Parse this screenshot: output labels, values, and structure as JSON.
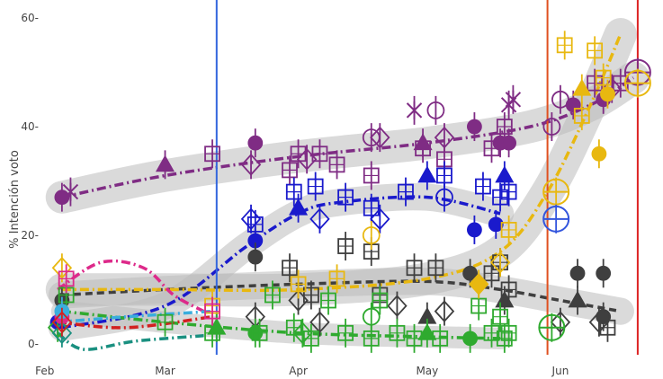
{
  "chart_data": {
    "type": "scatter",
    "title": "",
    "xlabel": "",
    "ylabel": "% Intención voto",
    "xaxis": {
      "type": "date",
      "range": [
        "2019-01-31",
        "2019-06-23"
      ],
      "ticks": [
        {
          "date": "2019-02-01",
          "label": "Feb"
        },
        {
          "date": "2019-03-01",
          "label": "Mar"
        },
        {
          "date": "2019-04-01",
          "label": "Apr"
        },
        {
          "date": "2019-05-01",
          "label": "May"
        },
        {
          "date": "2019-06-01",
          "label": "Jun"
        }
      ]
    },
    "yaxis": {
      "range": [
        -2,
        62
      ],
      "ticks": [
        {
          "value": 0,
          "label": "0-"
        },
        {
          "value": 20,
          "label": "20-"
        },
        {
          "value": 40,
          "label": "40-"
        },
        {
          "value": 60,
          "label": "60-"
        }
      ]
    },
    "grid": false,
    "legend": "none",
    "vlines": [
      {
        "date": "2019-03-13",
        "color": "#3366dd"
      },
      {
        "date": "2019-05-29",
        "color": "#e05020"
      },
      {
        "date": "2019-06-19",
        "color": "#dd2222"
      }
    ],
    "series": [
      {
        "color": "#7f2c84",
        "dash": "10,4,2,4",
        "trend": [
          [
            "2019-02-05",
            27
          ],
          [
            "2019-03-01",
            31
          ],
          [
            "2019-04-01",
            34.5
          ],
          [
            "2019-05-01",
            37
          ],
          [
            "2019-05-25",
            40
          ],
          [
            "2019-06-08",
            44
          ],
          [
            "2019-06-18",
            49
          ]
        ],
        "band": 3,
        "points": [
          [
            "2019-02-05",
            27,
            "circle",
            1
          ],
          [
            "2019-02-07",
            28,
            "asterisk",
            0
          ],
          [
            "2019-03-01",
            33,
            "triangle",
            1
          ],
          [
            "2019-03-12",
            35,
            "square",
            0
          ],
          [
            "2019-03-22",
            37,
            "circle",
            1
          ],
          [
            "2019-03-21",
            33,
            "diamond",
            0
          ],
          [
            "2019-03-30",
            32,
            "square",
            0
          ],
          [
            "2019-04-01",
            35,
            "square",
            0
          ],
          [
            "2019-04-03",
            34,
            "diamond",
            0
          ],
          [
            "2019-04-06",
            35,
            "square",
            0
          ],
          [
            "2019-04-10",
            33,
            "square",
            0
          ],
          [
            "2019-04-18",
            38,
            "circle",
            0
          ],
          [
            "2019-04-20",
            38,
            "diamond",
            0
          ],
          [
            "2019-04-18",
            31,
            "square",
            0
          ],
          [
            "2019-04-28",
            43,
            "asterisk",
            0
          ],
          [
            "2019-05-03",
            43,
            "circle",
            0
          ],
          [
            "2019-04-30",
            36,
            "square",
            0
          ],
          [
            "2019-05-05",
            34,
            "square",
            0
          ],
          [
            "2019-04-30",
            37,
            "triangle",
            1
          ],
          [
            "2019-05-05",
            38,
            "diamond",
            0
          ],
          [
            "2019-05-12",
            40,
            "circle",
            1
          ],
          [
            "2019-05-16",
            36,
            "square",
            0
          ],
          [
            "2019-05-18",
            37,
            "circle",
            1
          ],
          [
            "2019-05-19",
            40,
            "square",
            0
          ],
          [
            "2019-05-20",
            37,
            "circle",
            1
          ],
          [
            "2019-05-20",
            44,
            "asterisk",
            0
          ],
          [
            "2019-05-21",
            45,
            "asterisk",
            0
          ],
          [
            "2019-05-30",
            40,
            "circle",
            0
          ],
          [
            "2019-06-01",
            45,
            "circle",
            0
          ],
          [
            "2019-06-04",
            44,
            "circle",
            1
          ],
          [
            "2019-06-09",
            48,
            "square",
            0
          ],
          [
            "2019-06-11",
            45,
            "circle",
            1
          ],
          [
            "2019-06-13",
            47,
            "diamond",
            0
          ],
          [
            "2019-06-15",
            48,
            "square",
            0
          ],
          [
            "2019-06-19",
            50,
            "circlecross",
            0
          ]
        ]
      },
      {
        "color": "#1a1acc",
        "dash": "10,4,2,4",
        "trend": [
          [
            "2019-02-05",
            3
          ],
          [
            "2019-03-01",
            7
          ],
          [
            "2019-03-20",
            18
          ],
          [
            "2019-04-01",
            24
          ],
          [
            "2019-04-10",
            26
          ],
          [
            "2019-05-01",
            27
          ],
          [
            "2019-05-18",
            24
          ]
        ],
        "band": 2.5,
        "points": [
          [
            "2019-02-04",
            4,
            "circle",
            1
          ],
          [
            "2019-03-21",
            23,
            "diamond",
            0
          ],
          [
            "2019-03-22",
            22,
            "square",
            0
          ],
          [
            "2019-03-22",
            19,
            "circle",
            1
          ],
          [
            "2019-04-01",
            25,
            "triangle",
            1
          ],
          [
            "2019-03-31",
            28,
            "square",
            0
          ],
          [
            "2019-04-05",
            29,
            "square",
            0
          ],
          [
            "2019-04-06",
            23,
            "diamond",
            0
          ],
          [
            "2019-04-12",
            27,
            "square",
            0
          ],
          [
            "2019-04-18",
            25,
            "square",
            0
          ],
          [
            "2019-04-20",
            23,
            "diamond",
            0
          ],
          [
            "2019-04-26",
            28,
            "square",
            0
          ],
          [
            "2019-05-01",
            31,
            "triangle",
            1
          ],
          [
            "2019-05-05",
            27,
            "circle",
            0
          ],
          [
            "2019-05-05",
            31,
            "square",
            0
          ],
          [
            "2019-05-12",
            21,
            "circle",
            1
          ],
          [
            "2019-05-14",
            29,
            "square",
            0
          ],
          [
            "2019-05-17",
            22,
            "circle",
            1
          ],
          [
            "2019-05-18",
            27,
            "square",
            0
          ],
          [
            "2019-05-19",
            31,
            "triangle",
            1
          ],
          [
            "2019-05-20",
            28,
            "square",
            0
          ]
        ]
      },
      {
        "color": "#3f3f3f",
        "dash": "8,5",
        "trend": [
          [
            "2019-02-05",
            9
          ],
          [
            "2019-03-01",
            10
          ],
          [
            "2019-04-01",
            11
          ],
          [
            "2019-05-01",
            11.5
          ],
          [
            "2019-05-18",
            10
          ],
          [
            "2019-06-01",
            8
          ],
          [
            "2019-06-15",
            6
          ]
        ],
        "band": 2.5,
        "points": [
          [
            "2019-02-05",
            8,
            "circle",
            1
          ],
          [
            "2019-03-22",
            16,
            "circle",
            1
          ],
          [
            "2019-03-22",
            5,
            "diamond",
            0
          ],
          [
            "2019-03-30",
            14,
            "square",
            0
          ],
          [
            "2019-04-01",
            8,
            "diamond",
            0
          ],
          [
            "2019-04-04",
            9,
            "square",
            0
          ],
          [
            "2019-04-06",
            4,
            "diamond",
            0
          ],
          [
            "2019-04-12",
            18,
            "square",
            0
          ],
          [
            "2019-04-18",
            17,
            "square",
            0
          ],
          [
            "2019-04-20",
            9,
            "square",
            0
          ],
          [
            "2019-04-24",
            7,
            "diamond",
            0
          ],
          [
            "2019-04-28",
            14,
            "square",
            0
          ],
          [
            "2019-05-01",
            5,
            "triangle",
            1
          ],
          [
            "2019-05-03",
            14,
            "square",
            0
          ],
          [
            "2019-05-05",
            6,
            "diamond",
            0
          ],
          [
            "2019-05-11",
            13,
            "circle",
            1
          ],
          [
            "2019-05-16",
            13,
            "square",
            0
          ],
          [
            "2019-05-18",
            15,
            "square",
            0
          ],
          [
            "2019-05-19",
            8,
            "triangle",
            1
          ],
          [
            "2019-05-20",
            10,
            "square",
            0
          ],
          [
            "2019-06-01",
            4,
            "diamond",
            0
          ],
          [
            "2019-06-05",
            13,
            "circle",
            1
          ],
          [
            "2019-06-05",
            8,
            "triangle",
            1
          ],
          [
            "2019-06-10",
            4,
            "diamond",
            0
          ],
          [
            "2019-06-11",
            5,
            "circle",
            1
          ],
          [
            "2019-06-11",
            13,
            "circle",
            1
          ],
          [
            "2019-06-12",
            3,
            "square",
            0
          ]
        ]
      },
      {
        "color": "#2faa2f",
        "dash": "10,4,2,4",
        "trend": [
          [
            "2019-02-05",
            6
          ],
          [
            "2019-03-01",
            4
          ],
          [
            "2019-04-01",
            2
          ],
          [
            "2019-05-01",
            1.3
          ],
          [
            "2019-05-18",
            1
          ]
        ],
        "band": 2,
        "points": [
          [
            "2019-02-04",
            3,
            "diamond",
            0
          ],
          [
            "2019-02-06",
            9,
            "square",
            0
          ],
          [
            "2019-03-01",
            4,
            "square",
            0
          ],
          [
            "2019-03-12",
            2,
            "square",
            0
          ],
          [
            "2019-03-13",
            3,
            "triangle",
            1
          ],
          [
            "2019-03-22",
            2,
            "circle",
            1
          ],
          [
            "2019-03-23",
            2,
            "square",
            0
          ],
          [
            "2019-03-26",
            9,
            "square",
            0
          ],
          [
            "2019-03-31",
            3,
            "square",
            0
          ],
          [
            "2019-04-02",
            2,
            "diamond",
            0
          ],
          [
            "2019-04-04",
            1,
            "square",
            0
          ],
          [
            "2019-04-08",
            8,
            "square",
            0
          ],
          [
            "2019-04-12",
            2,
            "square",
            0
          ],
          [
            "2019-04-18",
            1,
            "square",
            0
          ],
          [
            "2019-04-18",
            5,
            "circle",
            0
          ],
          [
            "2019-04-20",
            8,
            "square",
            0
          ],
          [
            "2019-04-24",
            2,
            "square",
            0
          ],
          [
            "2019-04-28",
            1,
            "square",
            0
          ],
          [
            "2019-05-01",
            2,
            "triangle",
            1
          ],
          [
            "2019-05-04",
            1,
            "square",
            0
          ],
          [
            "2019-05-11",
            1,
            "circle",
            1
          ],
          [
            "2019-05-13",
            7,
            "square",
            0
          ],
          [
            "2019-05-16",
            2,
            "square",
            0
          ],
          [
            "2019-05-18",
            5,
            "square",
            0
          ],
          [
            "2019-05-19",
            1,
            "square",
            0
          ],
          [
            "2019-05-20",
            2,
            "square",
            0
          ],
          [
            "2019-05-30",
            3,
            "circlecross",
            0
          ]
        ]
      },
      {
        "color": "#e8b810",
        "dash": "10,4,2,4",
        "trend": [
          [
            "2019-02-05",
            10
          ],
          [
            "2019-03-01",
            10
          ],
          [
            "2019-04-01",
            10
          ],
          [
            "2019-05-01",
            12
          ],
          [
            "2019-05-18",
            17
          ],
          [
            "2019-05-29",
            28
          ],
          [
            "2019-06-08",
            44
          ],
          [
            "2019-06-15",
            57
          ]
        ],
        "band": 3,
        "points": [
          [
            "2019-02-05",
            14,
            "diamond",
            0
          ],
          [
            "2019-03-12",
            7,
            "square",
            0
          ],
          [
            "2019-04-01",
            11,
            "square",
            0
          ],
          [
            "2019-04-10",
            12,
            "square",
            0
          ],
          [
            "2019-04-18",
            20,
            "circle",
            0
          ],
          [
            "2019-05-13",
            11,
            "diamond",
            1
          ],
          [
            "2019-05-18",
            15,
            "diamond",
            0
          ],
          [
            "2019-05-20",
            21,
            "square",
            0
          ],
          [
            "2019-05-31",
            28,
            "circlecross",
            0
          ],
          [
            "2019-06-02",
            55,
            "square",
            0
          ],
          [
            "2019-06-06",
            42,
            "square",
            0
          ],
          [
            "2019-06-06",
            47,
            "triangle",
            1
          ],
          [
            "2019-06-09",
            54,
            "square",
            0
          ],
          [
            "2019-06-10",
            35,
            "circle",
            1
          ],
          [
            "2019-06-11",
            49,
            "square",
            0
          ],
          [
            "2019-06-12",
            46,
            "circle",
            1
          ],
          [
            "2019-06-19",
            48,
            "circlecross",
            0
          ]
        ]
      },
      {
        "color": "#3355dd",
        "dash": "",
        "trend": [],
        "band": 0,
        "points": [
          [
            "2019-05-31",
            23,
            "circlecross",
            0
          ]
        ]
      },
      {
        "color": "#dd2a8a",
        "dash": "10,4,2,4",
        "trend": [
          [
            "2019-02-04",
            10
          ],
          [
            "2019-02-14",
            15
          ],
          [
            "2019-02-24",
            14
          ],
          [
            "2019-03-03",
            9
          ],
          [
            "2019-03-10",
            6
          ]
        ],
        "band": 0,
        "points": [
          [
            "2019-02-05",
            5,
            "circle",
            1
          ],
          [
            "2019-02-06",
            12,
            "square",
            0
          ],
          [
            "2019-03-12",
            6,
            "square",
            0
          ]
        ]
      },
      {
        "color": "#1a9080",
        "dash": "10,4,2,4",
        "trend": [
          [
            "2019-02-04",
            2
          ],
          [
            "2019-02-10",
            -1
          ],
          [
            "2019-02-22",
            0.5
          ],
          [
            "2019-03-10",
            1.5
          ]
        ],
        "band": 0,
        "points": [
          [
            "2019-02-05",
            2,
            "diamond",
            0
          ]
        ]
      },
      {
        "color": "#3aaedd",
        "dash": "10,4,2,4",
        "trend": [
          [
            "2019-02-04",
            4
          ],
          [
            "2019-02-20",
            5
          ],
          [
            "2019-03-12",
            6
          ]
        ],
        "band": 0,
        "points": [
          [
            "2019-02-05",
            6,
            "circle",
            1
          ]
        ]
      },
      {
        "color": "#d22020",
        "dash": "10,4,2,4",
        "trend": [
          [
            "2019-02-04",
            4
          ],
          [
            "2019-02-20",
            3
          ],
          [
            "2019-03-12",
            5
          ]
        ],
        "band": 0,
        "points": [
          [
            "2019-02-05",
            4,
            "diamond",
            0
          ]
        ]
      }
    ]
  }
}
